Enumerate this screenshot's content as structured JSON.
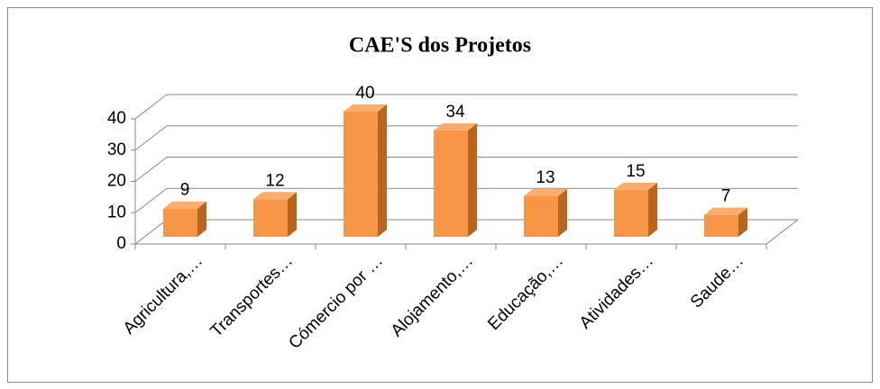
{
  "chart_data": {
    "type": "bar3d",
    "title": "CAE'S dos Projetos",
    "categories": [
      "Agricultura,…",
      "Transportes…",
      "Cómercio por …",
      "Alojamento,…",
      "Educação,…",
      "Atividades…",
      "Saude…"
    ],
    "values": [
      9,
      12,
      40,
      34,
      13,
      15,
      7
    ],
    "color": "#f79646",
    "ylim": [
      0,
      40
    ],
    "yticks": [
      0,
      10,
      20,
      30,
      40
    ],
    "grid": true
  }
}
